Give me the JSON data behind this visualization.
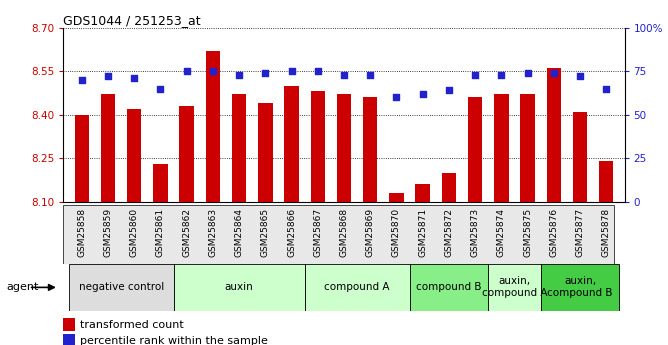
{
  "title": "GDS1044 / 251253_at",
  "samples": [
    "GSM25858",
    "GSM25859",
    "GSM25860",
    "GSM25861",
    "GSM25862",
    "GSM25863",
    "GSM25864",
    "GSM25865",
    "GSM25866",
    "GSM25867",
    "GSM25868",
    "GSM25869",
    "GSM25870",
    "GSM25871",
    "GSM25872",
    "GSM25873",
    "GSM25874",
    "GSM25875",
    "GSM25876",
    "GSM25877",
    "GSM25878"
  ],
  "bar_values": [
    8.4,
    8.47,
    8.42,
    8.23,
    8.43,
    8.62,
    8.47,
    8.44,
    8.5,
    8.48,
    8.47,
    8.46,
    8.13,
    8.16,
    8.2,
    8.46,
    8.47,
    8.47,
    8.56,
    8.41,
    8.24
  ],
  "percentile_values": [
    70,
    72,
    71,
    65,
    75,
    75,
    73,
    74,
    75,
    75,
    73,
    73,
    60,
    62,
    64,
    73,
    73,
    74,
    74,
    72,
    65
  ],
  "ymin": 8.1,
  "ymax": 8.7,
  "y2min": 0,
  "y2max": 100,
  "yticks": [
    8.1,
    8.25,
    8.4,
    8.55,
    8.7
  ],
  "y2ticks": [
    0,
    25,
    50,
    75,
    100
  ],
  "bar_color": "#cc0000",
  "dot_color": "#2222cc",
  "bar_width": 0.55,
  "groups": [
    {
      "label": "negative control",
      "start": 0,
      "end": 3,
      "color": "#dddddd"
    },
    {
      "label": "auxin",
      "start": 4,
      "end": 8,
      "color": "#ccffcc"
    },
    {
      "label": "compound A",
      "start": 9,
      "end": 12,
      "color": "#ccffcc"
    },
    {
      "label": "compound B",
      "start": 13,
      "end": 15,
      "color": "#88ee88"
    },
    {
      "label": "auxin,\ncompound A",
      "start": 16,
      "end": 17,
      "color": "#ccffcc"
    },
    {
      "label": "auxin,\ncompound B",
      "start": 18,
      "end": 20,
      "color": "#44cc44"
    }
  ],
  "legend_bar_label": "transformed count",
  "legend_dot_label": "percentile rank within the sample",
  "xlabel_agent": "agent",
  "bar_color_legend": "#cc0000",
  "dot_color_legend": "#2222cc",
  "tick_color_left": "#cc0000",
  "tick_color_right": "#2222cc"
}
